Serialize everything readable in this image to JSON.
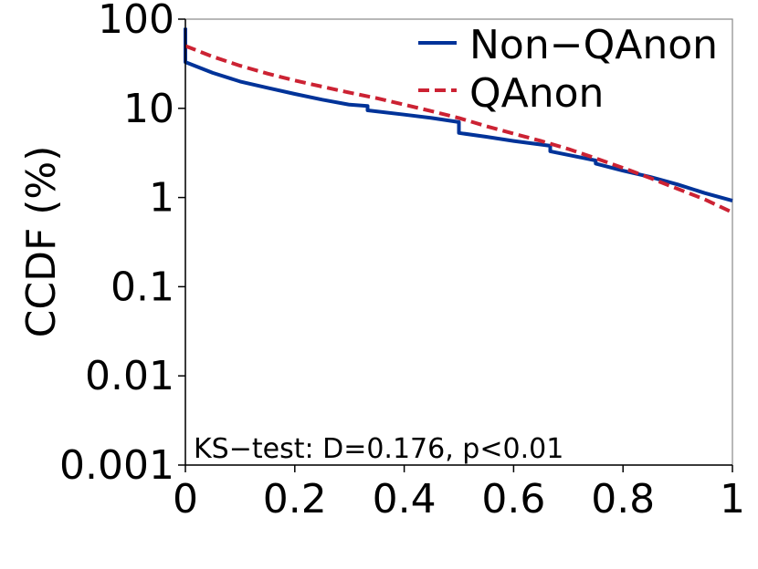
{
  "chart_data": {
    "type": "line",
    "title": "",
    "xlabel": "",
    "ylabel": "CCDF (%)",
    "xscale": "linear",
    "yscale": "log",
    "xlim": [
      0,
      1
    ],
    "ylim": [
      0.001,
      100
    ],
    "xticks": [
      {
        "value": 0,
        "label": "0"
      },
      {
        "value": 0.2,
        "label": "0.2"
      },
      {
        "value": 0.4,
        "label": "0.4"
      },
      {
        "value": 0.6,
        "label": "0.6"
      },
      {
        "value": 0.8,
        "label": "0.8"
      },
      {
        "value": 1,
        "label": "1"
      }
    ],
    "yticks": [
      {
        "value": 100,
        "label": "100"
      },
      {
        "value": 10,
        "label": "10"
      },
      {
        "value": 1,
        "label": "1"
      },
      {
        "value": 0.1,
        "label": "0.1"
      },
      {
        "value": 0.01,
        "label": "0.01"
      },
      {
        "value": 0.001,
        "label": "0.001"
      }
    ],
    "grid": false,
    "legend_position": "top-right",
    "annotation": "KS−test: D=0.176, p<0.01",
    "series": [
      {
        "name": "Non−QAnon",
        "color": "#003399",
        "style": "solid",
        "x": [
          0,
          0,
          0.05,
          0.1,
          0.15,
          0.2,
          0.25,
          0.3,
          0.333,
          0.333,
          0.4,
          0.45,
          0.5,
          0.5,
          0.55,
          0.6,
          0.667,
          0.667,
          0.7,
          0.75,
          0.75,
          0.8,
          0.85,
          0.9,
          0.95,
          1.0
        ],
        "y": [
          80,
          33,
          25,
          20,
          17,
          14.5,
          12.5,
          11,
          10.6,
          9.5,
          8.5,
          7.8,
          7.0,
          5.3,
          4.8,
          4.3,
          3.8,
          3.3,
          3.0,
          2.6,
          2.4,
          2.0,
          1.7,
          1.4,
          1.12,
          0.92
        ]
      },
      {
        "name": "QAnon",
        "color": "#cc2233",
        "style": "dashed",
        "x": [
          0,
          0.05,
          0.1,
          0.15,
          0.2,
          0.25,
          0.3,
          0.35,
          0.4,
          0.45,
          0.5,
          0.55,
          0.6,
          0.65,
          0.7,
          0.75,
          0.8,
          0.85,
          0.9,
          0.95,
          1.0
        ],
        "y": [
          50,
          38,
          30,
          24.5,
          20.5,
          17.5,
          15,
          13,
          11,
          9.3,
          7.8,
          6.3,
          5.2,
          4.3,
          3.5,
          2.75,
          2.15,
          1.65,
          1.25,
          0.95,
          0.68
        ]
      }
    ]
  }
}
